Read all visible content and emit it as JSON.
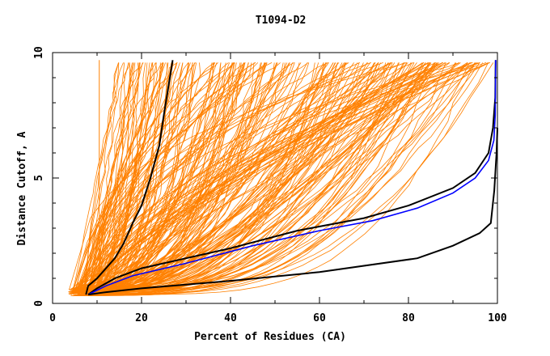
{
  "chart_data": {
    "type": "line",
    "title": "T1094-D2",
    "xlabel": "Percent of Residues (CA)",
    "ylabel": "Distance Cutoff, A",
    "xlim": [
      0,
      100
    ],
    "ylim": [
      0,
      10
    ],
    "x_ticks": [
      "0",
      "20",
      "40",
      "60",
      "80",
      "100"
    ],
    "y_ticks": [
      "0",
      "5",
      "10"
    ],
    "grid": false,
    "legend": "none",
    "colors": {
      "models": "#ff8000",
      "highlight": "#000000",
      "blue": "#0000ff",
      "frame": "#000000"
    },
    "series": [
      {
        "color": "#000000",
        "points": [
          [
            7.5,
            0.35
          ],
          [
            8,
            0.7
          ],
          [
            10,
            1.0
          ],
          [
            14,
            1.8
          ],
          [
            16,
            2.4
          ],
          [
            18,
            3.2
          ],
          [
            20,
            3.9
          ],
          [
            22,
            5.0
          ],
          [
            24,
            6.3
          ],
          [
            25,
            7.5
          ],
          [
            26,
            8.6
          ],
          [
            27,
            9.7
          ]
        ]
      },
      {
        "color": "#000000",
        "points": [
          [
            8,
            0.35
          ],
          [
            10,
            0.6
          ],
          [
            14,
            1.0
          ],
          [
            20,
            1.4
          ],
          [
            30,
            1.8
          ],
          [
            40,
            2.2
          ],
          [
            55,
            2.9
          ],
          [
            70,
            3.4
          ],
          [
            80,
            3.9
          ],
          [
            90,
            4.6
          ],
          [
            95,
            5.2
          ],
          [
            98,
            6.0
          ],
          [
            99,
            7.0
          ],
          [
            99.5,
            8.2
          ],
          [
            99.6,
            9.7
          ]
        ]
      },
      {
        "color": "#0000ff",
        "points": [
          [
            8,
            0.35
          ],
          [
            12,
            0.7
          ],
          [
            18,
            1.1
          ],
          [
            30,
            1.6
          ],
          [
            45,
            2.3
          ],
          [
            60,
            2.9
          ],
          [
            72,
            3.3
          ],
          [
            82,
            3.8
          ],
          [
            90,
            4.4
          ],
          [
            95,
            5.0
          ],
          [
            98,
            5.7
          ],
          [
            99.2,
            6.5
          ],
          [
            99.5,
            7.5
          ],
          [
            99.6,
            9.7
          ]
        ]
      },
      {
        "color": "#000000",
        "points": [
          [
            8,
            0.35
          ],
          [
            12,
            0.45
          ],
          [
            20,
            0.6
          ],
          [
            40,
            0.9
          ],
          [
            60,
            1.25
          ],
          [
            82,
            1.8
          ],
          [
            90,
            2.3
          ],
          [
            96,
            2.8
          ],
          [
            98.5,
            3.2
          ],
          [
            99.3,
            4.5
          ],
          [
            99.8,
            6.0
          ],
          [
            100,
            7.0
          ]
        ]
      }
    ]
  }
}
